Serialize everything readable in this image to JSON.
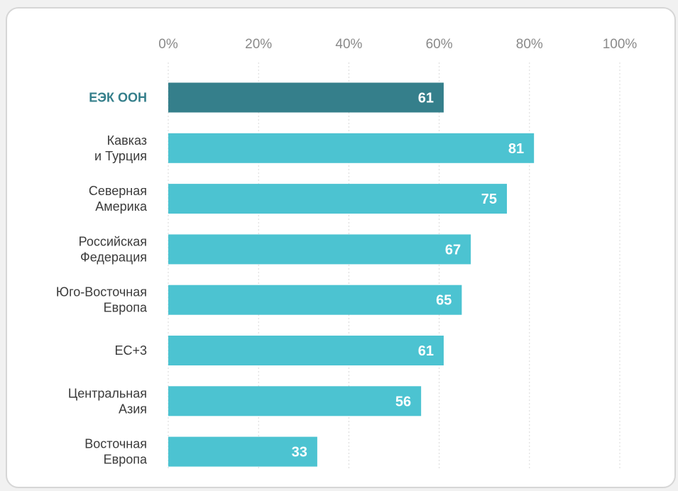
{
  "chart_data": {
    "type": "bar",
    "orientation": "horizontal",
    "title": "",
    "xlabel": "",
    "ylabel": "",
    "xlim": [
      0,
      100
    ],
    "ticks": [
      "0%",
      "20%",
      "40%",
      "60%",
      "80%",
      "100%"
    ],
    "tick_values": [
      0,
      20,
      40,
      60,
      80,
      100
    ],
    "grid": true,
    "categories": [
      [
        "ЕЭК ООН"
      ],
      [
        "Кавказ",
        "и Турция"
      ],
      [
        "Северная",
        "Америка"
      ],
      [
        "Российская",
        "Федерация"
      ],
      [
        "Юго-Восточная",
        "Европа"
      ],
      [
        "ЕС+3"
      ],
      [
        "Центральная",
        "Азия"
      ],
      [
        "Восточная",
        "Европа"
      ]
    ],
    "values": [
      61,
      81,
      75,
      67,
      65,
      61,
      56,
      33
    ],
    "highlight_index": 0,
    "colors": {
      "highlight_bar": "#357f8b",
      "bar": "#4cc3d1",
      "grid": "#d9d9d9",
      "highlight_label": "#357f8b",
      "label": "#3b3b3b",
      "tick": "#8a8a8a"
    }
  }
}
